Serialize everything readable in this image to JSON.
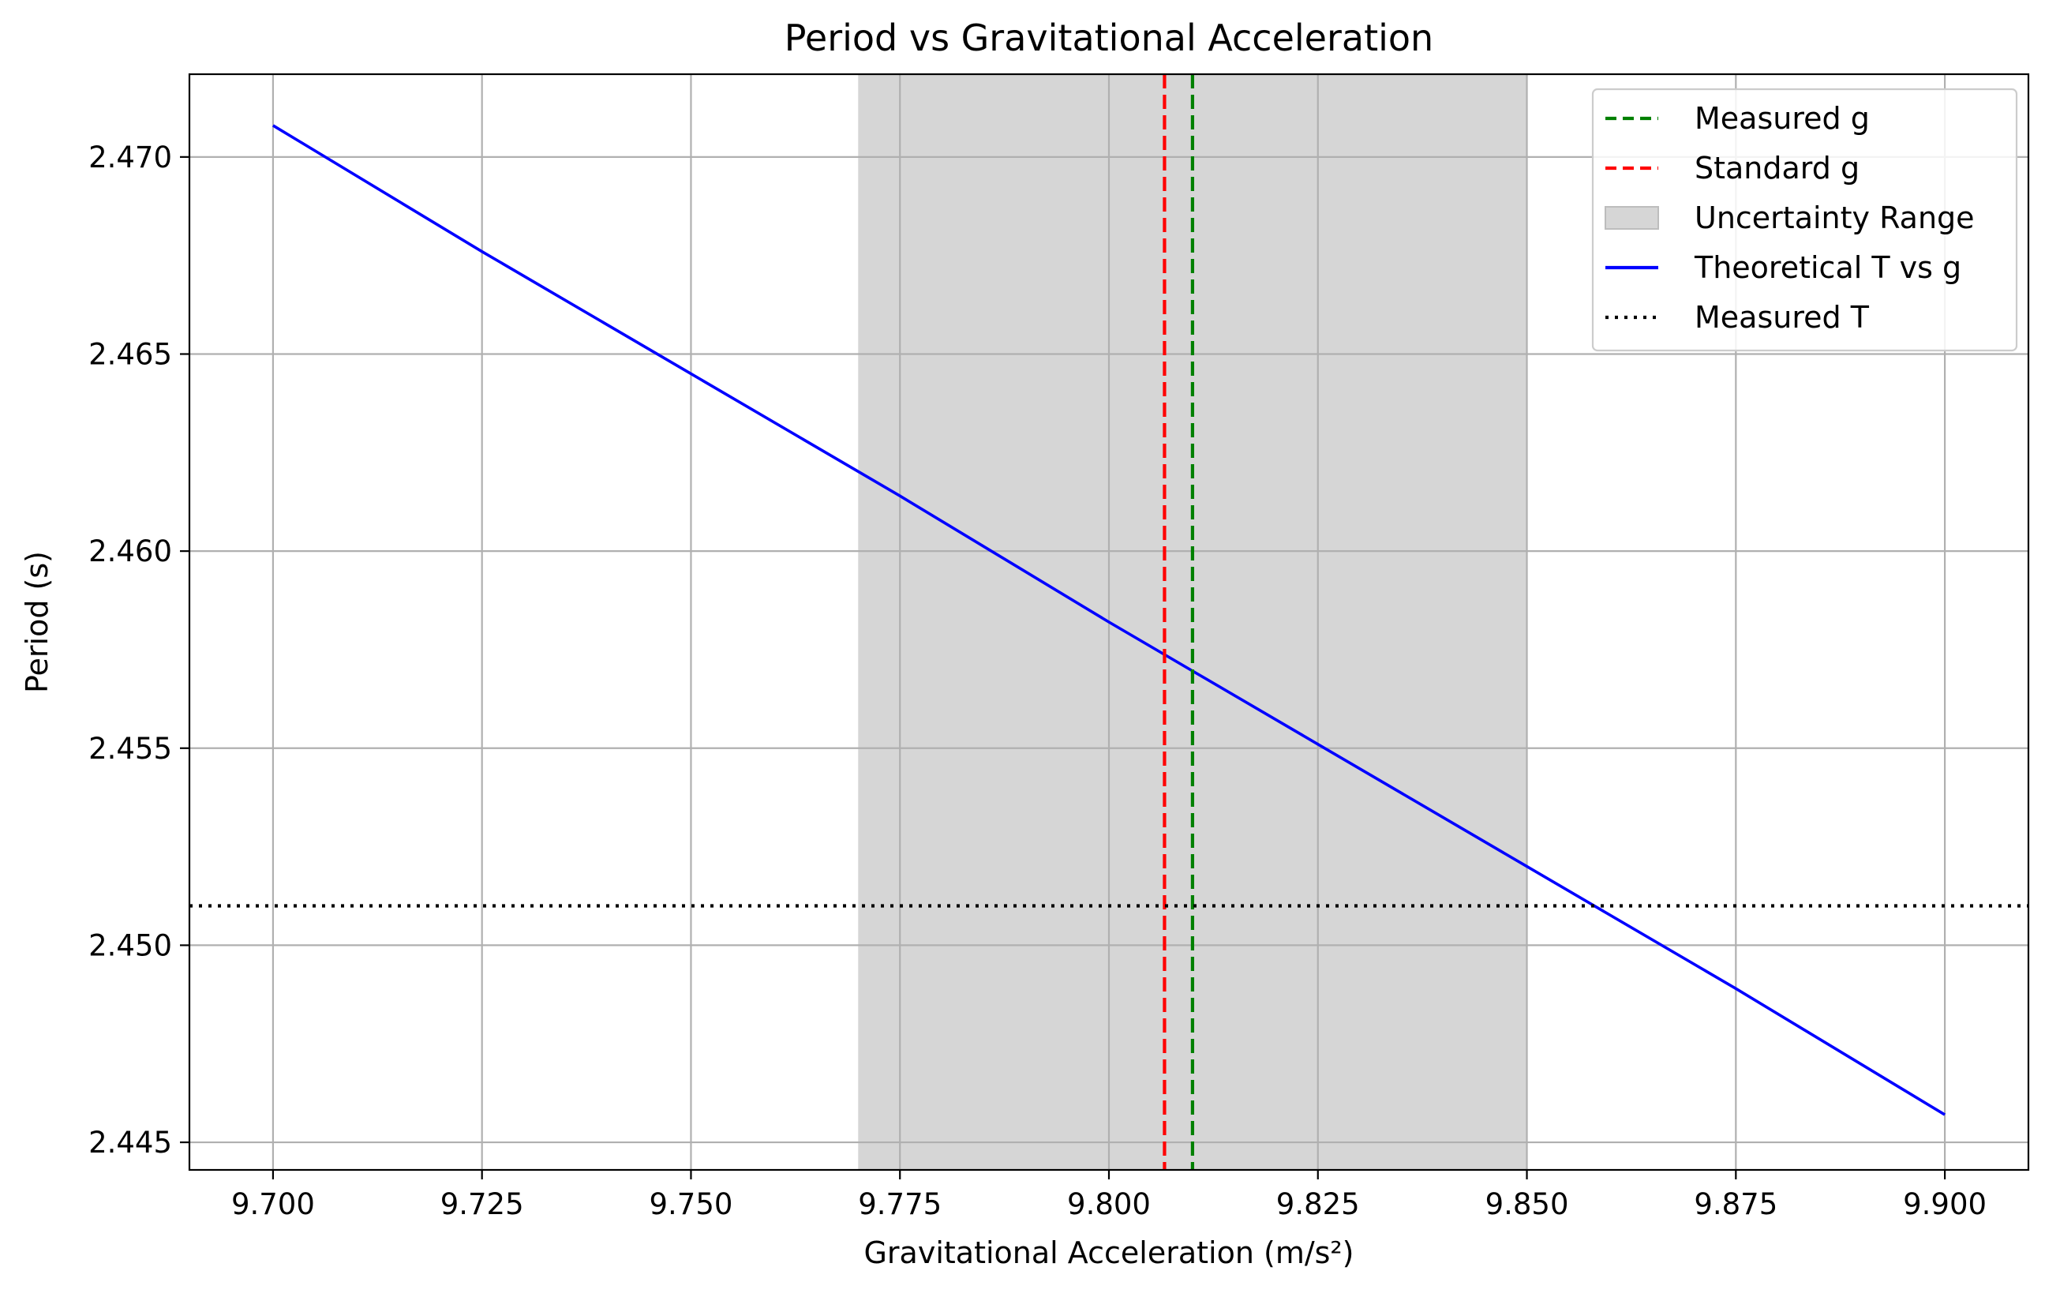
{
  "chart_data": {
    "type": "line",
    "title": "Period vs Gravitational Acceleration",
    "xlabel": "Gravitational Acceleration (m/s²)",
    "ylabel": "Period (s)",
    "xlim": [
      9.69,
      9.91
    ],
    "ylim": [
      2.4443,
      2.4721
    ],
    "x_ticks": [
      9.7,
      9.725,
      9.75,
      9.775,
      9.8,
      9.825,
      9.85,
      9.875,
      9.9
    ],
    "x_tick_labels": [
      "9.700",
      "9.725",
      "9.750",
      "9.775",
      "9.800",
      "9.825",
      "9.850",
      "9.875",
      "9.900"
    ],
    "y_ticks": [
      2.445,
      2.45,
      2.455,
      2.46,
      2.465,
      2.47
    ],
    "y_tick_labels": [
      "2.445",
      "2.450",
      "2.455",
      "2.460",
      "2.465",
      "2.470"
    ],
    "grid": true,
    "legend_position": "top-right",
    "series": [
      {
        "name": "Theoretical T vs g",
        "kind": "line",
        "color": "#0000ff",
        "style": "solid",
        "x": [
          9.7,
          9.725,
          9.75,
          9.775,
          9.8,
          9.825,
          9.85,
          9.875,
          9.9
        ],
        "y": [
          2.4708,
          2.4676,
          2.4645,
          2.4614,
          2.4582,
          2.4551,
          2.452,
          2.4489,
          2.4457
        ]
      },
      {
        "name": "Measured g",
        "kind": "vline",
        "x": 9.81,
        "color": "#008000",
        "style": "dashed"
      },
      {
        "name": "Standard g",
        "kind": "vline",
        "x": 9.80665,
        "color": "#ff0000",
        "style": "dashed"
      },
      {
        "name": "Uncertainty Range",
        "kind": "vspan",
        "x_range": [
          9.77,
          9.85
        ],
        "color": "#d6d6d6"
      },
      {
        "name": "Measured T",
        "kind": "hline",
        "y": 2.451,
        "color": "#000000",
        "style": "dotted"
      }
    ],
    "legend": [
      {
        "label": "Measured g",
        "kind": "dashed-line",
        "color": "#008000"
      },
      {
        "label": "Standard g",
        "kind": "dashed-line",
        "color": "#ff0000"
      },
      {
        "label": "Uncertainty Range",
        "kind": "patch",
        "color": "#d6d6d6"
      },
      {
        "label": "Theoretical T vs g",
        "kind": "solid-line",
        "color": "#0000ff"
      },
      {
        "label": "Measured T",
        "kind": "dotted-line",
        "color": "#000000"
      }
    ]
  }
}
